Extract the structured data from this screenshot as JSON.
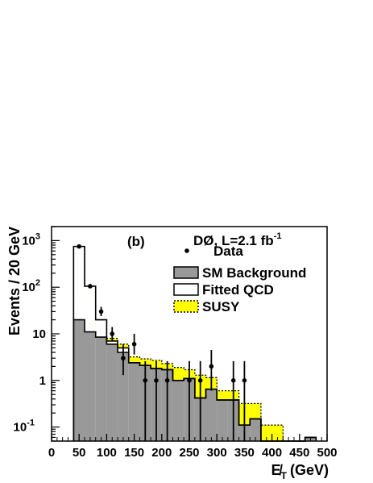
{
  "chart_data": {
    "type": "histogram",
    "panel_label": "(b)",
    "experiment": "DØ, L=2.1 fb",
    "experiment_sup": "-1",
    "ylabel": "Events / 20 GeV",
    "xlabel": "E̸",
    "xlabel_sub": "T",
    "xlabel_unit": "(GeV)",
    "xlim": [
      0,
      500
    ],
    "ylim": [
      0.05,
      2000
    ],
    "yscale": "log",
    "x_ticks": [
      "0",
      "50",
      "100",
      "150",
      "200",
      "250",
      "300",
      "350",
      "400",
      "450",
      "500"
    ],
    "y_ticks": [
      {
        "base": "10",
        "exp": "-1"
      },
      {
        "base": "1",
        "exp": ""
      },
      {
        "base": "10",
        "exp": ""
      },
      {
        "base": "10",
        "exp": "2"
      },
      {
        "base": "10",
        "exp": "3"
      }
    ],
    "bin_edges": [
      40,
      60,
      80,
      100,
      120,
      140,
      160,
      180,
      200,
      220,
      240,
      260,
      280,
      300,
      320,
      340,
      360,
      380,
      400,
      420,
      440,
      460,
      480
    ],
    "series": [
      {
        "name": "SM Background",
        "color": "#999999",
        "values": [
          20,
          11,
          8.5,
          6,
          4,
          2.4,
          2.1,
          1.8,
          1.7,
          1.0,
          1.1,
          0.42,
          0.65,
          0.38,
          0.38,
          0.11,
          0.15,
          0,
          0,
          0,
          0,
          0.06
        ]
      },
      {
        "name": "Fitted QCD",
        "values": [
          750,
          105,
          20,
          7,
          5,
          2.4,
          2.1,
          1.8,
          1.7,
          1.0,
          1.1,
          0.42,
          0.65,
          0.38,
          0.38,
          0.11,
          0.15,
          0,
          0,
          0,
          0,
          0.06
        ]
      },
      {
        "name": "SUSY",
        "color": "#ffff00",
        "values": [
          750,
          105,
          20,
          8,
          6,
          3.2,
          2.9,
          2.7,
          2.3,
          1.9,
          1.7,
          1.3,
          1.15,
          0.6,
          0.6,
          0.32,
          0.32,
          0.11,
          0.11,
          0,
          0,
          0.06
        ]
      }
    ],
    "data": {
      "name": "Data",
      "points": [
        {
          "x": 50,
          "y": 750,
          "lo": 720,
          "hi": 780
        },
        {
          "x": 70,
          "y": 105,
          "lo": 95,
          "hi": 116
        },
        {
          "x": 90,
          "y": 30,
          "lo": 24,
          "hi": 38
        },
        {
          "x": 110,
          "y": 10,
          "lo": 7,
          "hi": 14
        },
        {
          "x": 130,
          "y": 3,
          "lo": 1.3,
          "hi": 6
        },
        {
          "x": 150,
          "y": 6,
          "lo": 3.6,
          "hi": 10
        },
        {
          "x": 170,
          "y": 1,
          "lo": 0.05,
          "hi": 2.6
        },
        {
          "x": 190,
          "y": 1,
          "lo": 0.05,
          "hi": 2.6
        },
        {
          "x": 210,
          "y": 1,
          "lo": 0.05,
          "hi": 2.6
        },
        {
          "x": 250,
          "y": 1,
          "lo": 0.05,
          "hi": 2.6
        },
        {
          "x": 270,
          "y": 1,
          "lo": 0.05,
          "hi": 2.6
        },
        {
          "x": 290,
          "y": 2,
          "lo": 0.6,
          "hi": 4.5
        },
        {
          "x": 330,
          "y": 1,
          "lo": 0.05,
          "hi": 2.6
        },
        {
          "x": 350,
          "y": 1,
          "lo": 0.05,
          "hi": 2.6
        }
      ]
    },
    "legend": {
      "placement": "top-right",
      "entries": [
        {
          "label": "Data",
          "kind": "marker"
        },
        {
          "label": "SM Background",
          "kind": "fill",
          "color": "#999999"
        },
        {
          "label": "Fitted QCD",
          "kind": "open"
        },
        {
          "label": "SUSY",
          "kind": "fill",
          "color": "#ffff00"
        }
      ]
    }
  }
}
